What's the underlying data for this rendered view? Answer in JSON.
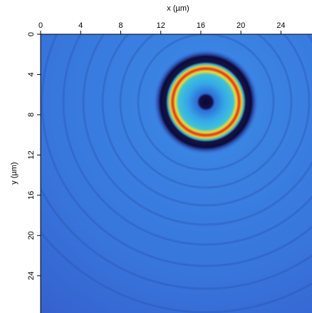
{
  "chart_data": {
    "type": "image",
    "xlabel": "x (µm)",
    "ylabel": "y (µm)",
    "xlim": [
      0,
      27.1
    ],
    "xticks": [
      0,
      4,
      8,
      12,
      16,
      20,
      24
    ],
    "ylim": [
      0,
      27.7
    ],
    "yticks": [
      0,
      4,
      8,
      12,
      16,
      20,
      24
    ]
  }
}
